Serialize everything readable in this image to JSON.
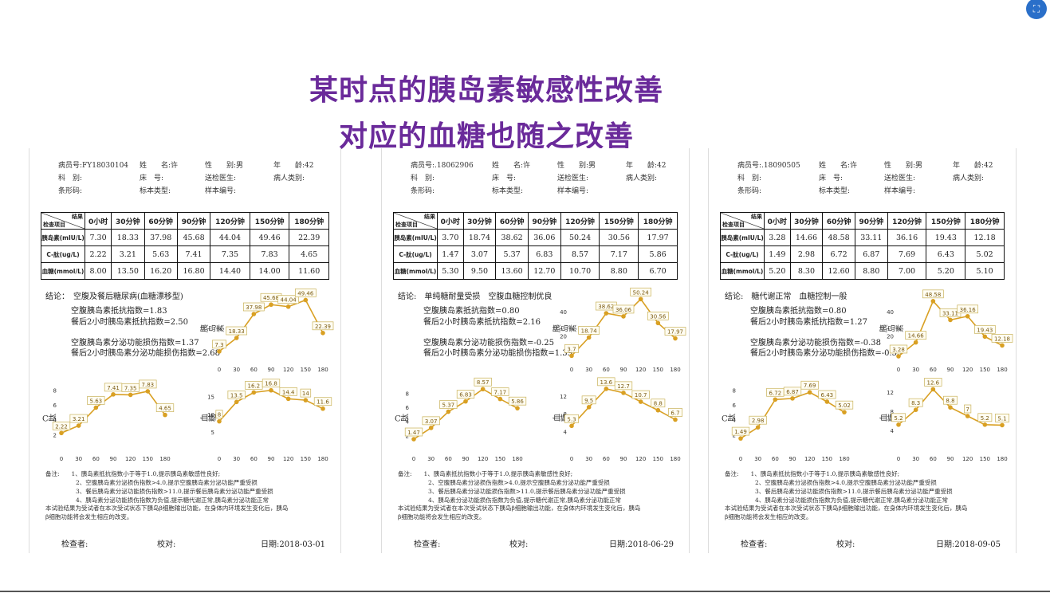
{
  "headline": {
    "line1": "某时点的胰岛素敏感性改善",
    "line2": "对应的血糖也随之改善"
  },
  "colors": {
    "headline": "#6a2a9a",
    "series": "#d9a023",
    "label_border": "#c9b25a"
  },
  "column_headers": [
    "0小时",
    "30分钟",
    "60分钟",
    "90分钟",
    "120分钟",
    "150分钟",
    "180分钟"
  ],
  "table_corner": {
    "top": "结果",
    "bottom": "检查项目"
  },
  "row_labels": [
    "胰岛素(mIU/L)",
    "C-肽(ug/L)",
    "血糖(mmol/L)"
  ],
  "chart_x_ticks": [
    "0",
    "30",
    "60",
    "90",
    "120",
    "150",
    "180"
  ],
  "chart_ylabels": {
    "ins": "胰岛素",
    "cp": "C肽",
    "glu": "血糖"
  },
  "reports": [
    {
      "header": {
        "patient_id": "病员号:FY18030104",
        "name": "姓　　名:许",
        "sex": "性　　别:男",
        "age": "年　　龄:42",
        "dept": "科　别:",
        "bed": "床　号:",
        "doctor": "送检医生:",
        "ptype": "病人类别:",
        "barcode": "条形码:",
        "stype": "标本类型:",
        "snum": "样本编号:"
      },
      "rows": [
        [
          "7.30",
          "18.33",
          "37.98",
          "45.68",
          "44.04",
          "49.46",
          "22.39"
        ],
        [
          "2.22",
          "3.21",
          "5.63",
          "7.41",
          "7.35",
          "7.83",
          "4.65"
        ],
        [
          "8.00",
          "13.50",
          "16.20",
          "16.80",
          "14.40",
          "14.00",
          "11.60"
        ]
      ],
      "conclusion": {
        "title": "结论：　空腹及餐后糖尿病(血糖漂移型)",
        "l1": "空腹胰岛素抵抗指数=1.83",
        "l2": "餐后2小时胰岛素抵抗指数=2.50",
        "l3": "空腹胰岛素分泌功能损伤指数=1.37",
        "l4": "餐后2小时胰岛素分泌功能损伤指数=2.68"
      },
      "notes": {
        "head": "备注:　　1、胰岛素抵抗指数小于等于1.0,提示胰岛素敏感性良好;",
        "n2": "2、空腹胰岛素分泌损伤指数>4.0,提示空腹胰岛素分泌功能严重受损",
        "n3": "3、餐后胰岛素分泌功能损伤指数>11.0,提示餐后胰岛素分泌功能严重受损",
        "n4": "4、胰岛素分泌功能损伤指数为负值,提示糖代谢正常,胰岛素分泌功能正常",
        "n5": "本试验结果为受试者在本次受试状态下胰岛β细胞输出功能，在身体内环境发生变化后，胰岛",
        "n6": "β细胞功能将会发生相应的改变。"
      },
      "sign": {
        "checker": "检查者:",
        "verifier": "校对:",
        "date": "日期:2018-03-01"
      },
      "chart_data": [
        {
          "type": "line",
          "ylabel": "胰岛素",
          "x": [
            0,
            30,
            60,
            90,
            120,
            150,
            180
          ],
          "values": [
            7.3,
            18.33,
            37.98,
            45.68,
            44.04,
            49.46,
            22.39
          ],
          "labels": [
            "7.3",
            "18.33",
            "37.98",
            "45.68",
            "44.04",
            "49.46",
            "22.39"
          ],
          "yticks": [],
          "ylim": [
            0,
            55
          ]
        },
        {
          "type": "line",
          "ylabel": "C肽",
          "x": [
            0,
            30,
            60,
            90,
            120,
            150,
            180
          ],
          "values": [
            2.22,
            3.21,
            5.63,
            7.41,
            7.35,
            7.83,
            4.65
          ],
          "labels": [
            "2.22",
            "3.21",
            "5.63",
            "7.41",
            "7.35",
            "7.83",
            "4.65"
          ],
          "yticks": [
            "2",
            "4",
            "6",
            "8"
          ],
          "ylim": [
            0,
            9
          ]
        },
        {
          "type": "line",
          "ylabel": "血糖",
          "x": [
            0,
            30,
            60,
            90,
            120,
            150,
            180
          ],
          "values": [
            8,
            13.5,
            16.2,
            16.8,
            14.4,
            14,
            11.6
          ],
          "labels": [
            "8",
            "13.5",
            "16.2",
            "16.8",
            "14.4",
            "14",
            "11.6"
          ],
          "yticks": [
            "5",
            "10",
            "15"
          ],
          "ylim": [
            0,
            19
          ]
        }
      ]
    },
    {
      "header": {
        "patient_id": "病员号:.18062906",
        "name": "姓　　名:许",
        "sex": "性　　别:男",
        "age": "年　　龄:42",
        "dept": "科　别:",
        "bed": "床　号:",
        "doctor": "送检医生:",
        "ptype": "病人类别:",
        "barcode": "条形码:",
        "stype": "标本类型:",
        "snum": "样本编号:"
      },
      "rows": [
        [
          "3.70",
          "18.74",
          "38.62",
          "36.06",
          "50.24",
          "30.56",
          "17.97"
        ],
        [
          "1.47",
          "3.07",
          "5.37",
          "6.83",
          "8.57",
          "7.17",
          "5.86"
        ],
        [
          "5.30",
          "9.50",
          "13.60",
          "12.70",
          "10.70",
          "8.80",
          "6.70"
        ]
      ],
      "conclusion": {
        "title": "结论:　单纯糖耐量受损　空腹血糖控制优良",
        "l1": "空腹胰岛素抵抗指数=0.80",
        "l2": "餐后2小时胰岛素抵抗指数=2.16",
        "l3": "空腹胰岛素分泌功能损伤指数=-0.25",
        "l4": "餐后2小时胰岛素分泌功能损伤指数=1.39"
      },
      "notes": {
        "head": "备注:　　1、胰岛素抵抗指数小于等于1.0,提示胰岛素敏感性良好;",
        "n2": "2、空腹胰岛素分泌损伤指数>4.0,提示空腹胰岛素分泌功能严重受损",
        "n3": "3、餐后胰岛素分泌功能损伤指数>11.0,提示餐后胰岛素分泌功能严重受损",
        "n4": "4、胰岛素分泌功能损伤指数为负值,提示糖代谢正常,胰岛素分泌功能正常",
        "n5": "本试验结果为受试者在本次受试状态下胰岛β细胞输出功能，在身体内环境发生变化后，胰岛",
        "n6": "β细胞功能将会发生相应的改变。"
      },
      "sign": {
        "checker": "检查者:",
        "verifier": "校对:",
        "date": "日期:2018-06-29"
      },
      "chart_data": [
        {
          "type": "line",
          "ylabel": "胰岛素",
          "x": [
            0,
            30,
            60,
            90,
            120,
            150,
            180
          ],
          "values": [
            3.7,
            18.74,
            38.62,
            36.06,
            50.24,
            30.56,
            17.97
          ],
          "labels": [
            "3.7",
            "18.74",
            "38.62",
            "36.06",
            "50.24",
            "30.56",
            "17.97"
          ],
          "yticks": [
            "20",
            "40"
          ],
          "ylim": [
            0,
            55
          ]
        },
        {
          "type": "line",
          "ylabel": "C肽",
          "x": [
            0,
            30,
            60,
            90,
            120,
            150,
            180
          ],
          "values": [
            1.47,
            3.07,
            5.37,
            6.83,
            8.57,
            7.17,
            5.86
          ],
          "labels": [
            "1.47",
            "3.07",
            "5.37",
            "6.83",
            "8.57",
            "7.17",
            "5.86"
          ],
          "yticks": [
            "2",
            "4",
            "6",
            "8"
          ],
          "ylim": [
            0,
            9.5
          ]
        },
        {
          "type": "line",
          "ylabel": "血糖",
          "x": [
            0,
            30,
            60,
            90,
            120,
            150,
            180
          ],
          "values": [
            5.3,
            9.5,
            13.6,
            12.7,
            10.7,
            8.8,
            6.7
          ],
          "labels": [
            "5.3",
            "9.5",
            "13.6",
            "12.7",
            "10.7",
            "8.8",
            "6.7"
          ],
          "yticks": [
            "4",
            "8",
            "12"
          ],
          "ylim": [
            0,
            15
          ]
        }
      ]
    },
    {
      "header": {
        "patient_id": "病员号:.18090505",
        "name": "姓　　名:许",
        "sex": "性　　别:男",
        "age": "年　　龄:42",
        "dept": "科　别:",
        "bed": "床　号:",
        "doctor": "送检医生:",
        "ptype": "病人类别:",
        "barcode": "条形码:",
        "stype": "标本类型:",
        "snum": "样本编号:"
      },
      "rows": [
        [
          "3.28",
          "14.66",
          "48.58",
          "33.11",
          "36.16",
          "19.43",
          "12.18"
        ],
        [
          "1.49",
          "2.98",
          "6.72",
          "6.87",
          "7.69",
          "6.43",
          "5.02"
        ],
        [
          "5.20",
          "8.30",
          "12.60",
          "8.80",
          "7.00",
          "5.20",
          "5.10"
        ]
      ],
      "conclusion": {
        "title": "结论:　糖代谢正常　血糖控制一般",
        "l1": "空腹胰岛素抵抗指数=0.80",
        "l2": "餐后2小时胰岛素抵抗指数=1.27",
        "l3": "空腹胰岛素分泌功能损伤指数=-0.38",
        "l4": "餐后2小时胰岛素分泌功能损伤指数=-0.55"
      },
      "notes": {
        "head": "备注:　　1、胰岛素抵抗指数小于等于1.0,提示胰岛素敏感性良好;",
        "n2": "2、空腹胰岛素分泌损伤指数>4.0,提示空腹胰岛素分泌功能严重受损",
        "n3": "3、餐后胰岛素分泌功能损伤指数>11.0,提示餐后胰岛素分泌功能严重受损",
        "n4": "4、胰岛素分泌功能损伤指数为负值,提示糖代谢正常,胰岛素分泌功能正常",
        "n5": "本试验结果为受试者在本次受试状态下胰岛β细胞输出功能，在身体内环境发生变化后，胰岛",
        "n6": "β细胞功能将会发生相应的改变。"
      },
      "sign": {
        "checker": "检查者:",
        "verifier": "校对:",
        "date": "日期:2018-09-05"
      },
      "chart_data": [
        {
          "type": "line",
          "ylabel": "胰岛素",
          "x": [
            0,
            30,
            60,
            90,
            120,
            150,
            180
          ],
          "values": [
            3.28,
            14.66,
            48.58,
            33.11,
            36.16,
            19.43,
            12.18
          ],
          "labels": [
            "3.28",
            "14.66",
            "48.58",
            "33.11",
            "36.16",
            "19.43",
            "12.18"
          ],
          "yticks": [
            "20",
            "40"
          ],
          "ylim": [
            0,
            55
          ]
        },
        {
          "type": "line",
          "ylabel": "C肽",
          "x": [
            0,
            30,
            60,
            90,
            120,
            150,
            180
          ],
          "values": [
            1.49,
            2.98,
            6.72,
            6.87,
            7.69,
            6.43,
            5.02
          ],
          "labels": [
            "1.49",
            "2.98",
            "6.72",
            "6.87",
            "7.69",
            "6.43",
            "5.02"
          ],
          "yticks": [
            "2",
            "4",
            "6",
            "8"
          ],
          "ylim": [
            0,
            9
          ]
        },
        {
          "type": "line",
          "ylabel": "血糖",
          "x": [
            0,
            30,
            60,
            90,
            120,
            150,
            180
          ],
          "values": [
            5.2,
            8.3,
            12.6,
            8.8,
            7,
            5.2,
            5.1
          ],
          "labels": [
            "5.2",
            "8.3",
            "12.6",
            "8.8",
            "7",
            "5.2",
            "5.1"
          ],
          "yticks": [
            "4",
            "8",
            "12"
          ],
          "ylim": [
            0,
            14
          ]
        }
      ]
    }
  ]
}
